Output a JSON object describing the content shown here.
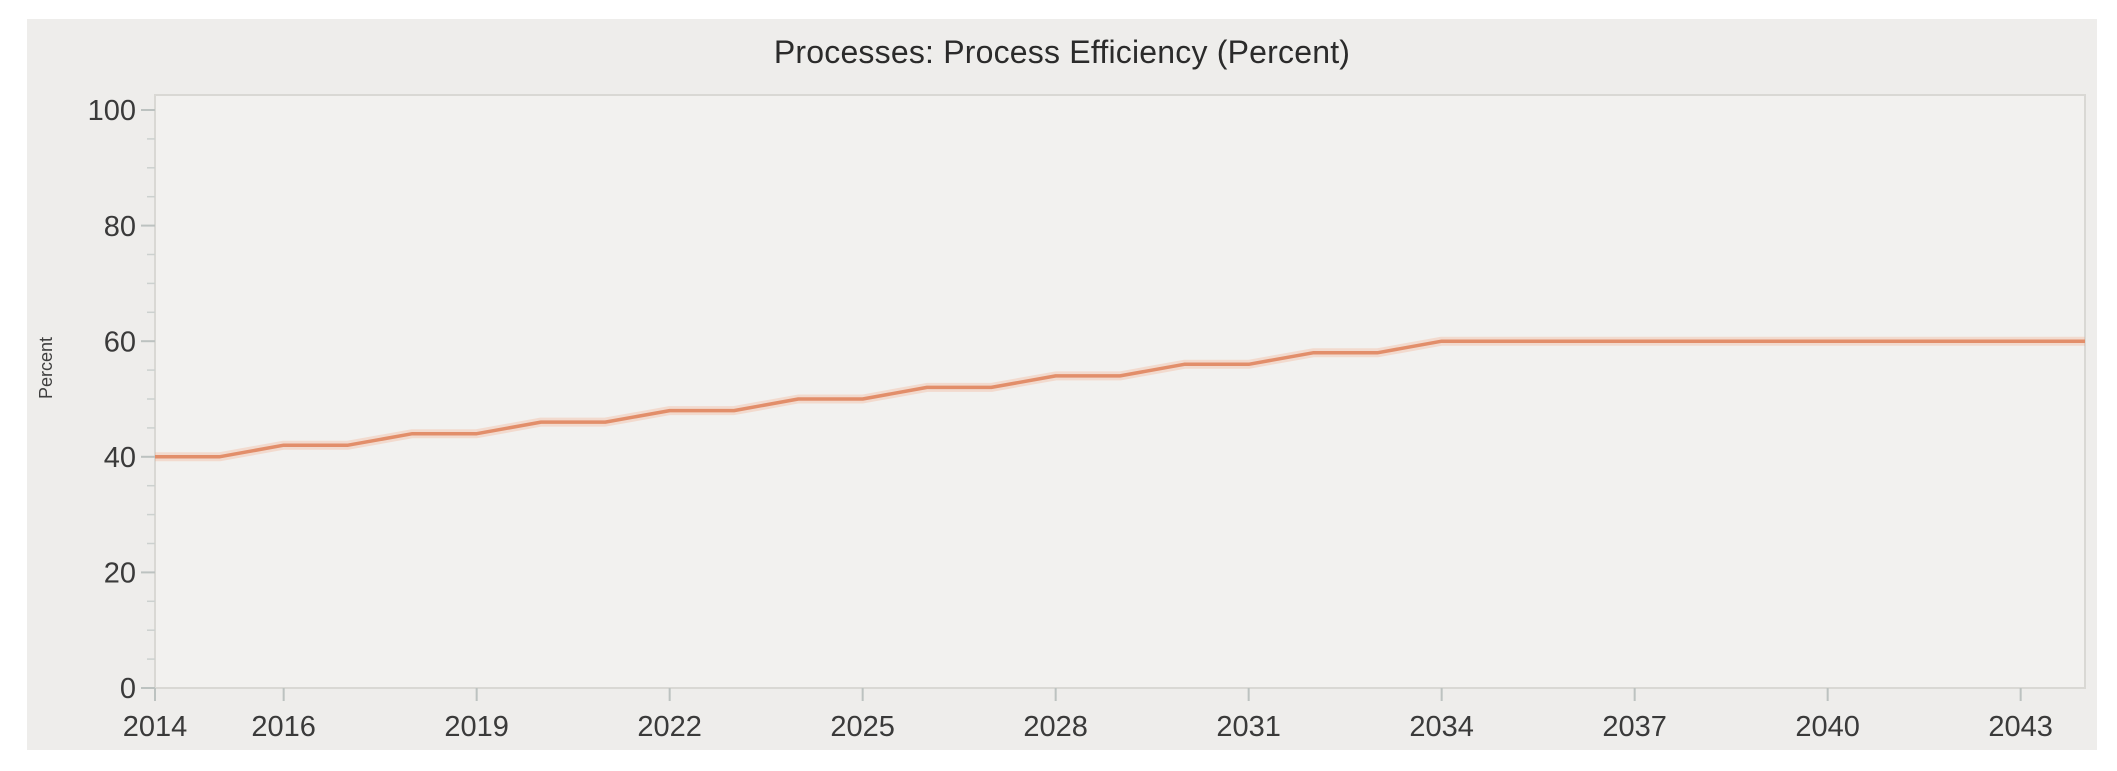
{
  "chart_data": {
    "type": "line",
    "title": "Processes: Process Efficiency (Percent)",
    "xlabel": "",
    "ylabel": "Percent",
    "x": [
      2014,
      2015,
      2016,
      2017,
      2018,
      2019,
      2020,
      2021,
      2022,
      2023,
      2024,
      2025,
      2026,
      2027,
      2028,
      2029,
      2030,
      2031,
      2032,
      2033,
      2034,
      2035,
      2036,
      2037,
      2038,
      2039,
      2040,
      2041,
      2042,
      2043,
      2044
    ],
    "series": [
      {
        "name": "Process Efficiency",
        "values": [
          40,
          40,
          42,
          42,
          44,
          44,
          46,
          46,
          48,
          48,
          50,
          50,
          52,
          52,
          54,
          54,
          56,
          56,
          58,
          58,
          60,
          60,
          60,
          60,
          60,
          60,
          60,
          60,
          60,
          60,
          60
        ]
      }
    ],
    "xlim": [
      2014,
      2044
    ],
    "ylim": [
      0,
      100
    ],
    "x_ticks": [
      2014,
      2016,
      2019,
      2022,
      2025,
      2028,
      2031,
      2034,
      2037,
      2040,
      2043
    ],
    "y_ticks": [
      0,
      20,
      40,
      60,
      80,
      100
    ],
    "y_minor_tick_step": 5,
    "grid": "off",
    "legend": "none"
  },
  "colors": {
    "page_bg": "#ffffff",
    "panel_bg": "#eeedeb",
    "plot_bg": "#f2f1ef",
    "plot_border": "#d9d8d4",
    "major_tick": "#bcc2c0",
    "minor_tick": "#ccd1cf",
    "title_text": "#2b2b2b",
    "tick_label_text": "#3a3a3a",
    "axis_title_text": "#3f3f3f",
    "line": "#e28e6a",
    "line_glow": "#f2a680"
  }
}
